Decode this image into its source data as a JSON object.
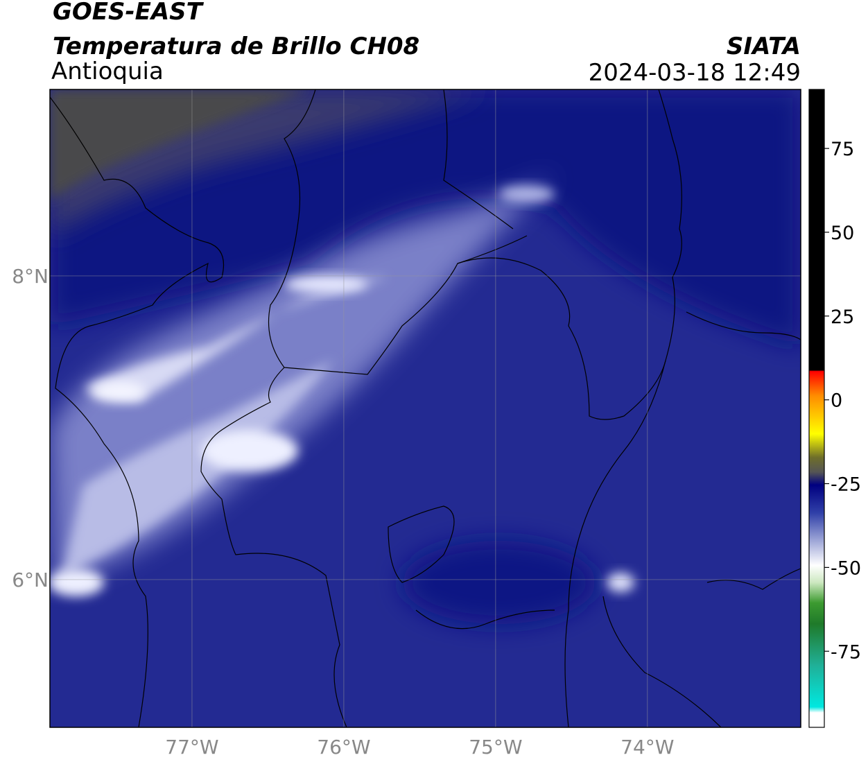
{
  "header": {
    "title": "GOES-EAST",
    "subtitle": "Temperatura de Brillo CH08",
    "region": "Antioquia",
    "source": "SIATA",
    "timestamp": "2024-03-18 12:49"
  },
  "map": {
    "lon_range": [
      -77.936,
      -72.99
    ],
    "lat_range": [
      5.027,
      9.228
    ],
    "lon_ticks": [
      {
        "value": -77,
        "label": "77°W"
      },
      {
        "value": -76,
        "label": "76°W"
      },
      {
        "value": -75,
        "label": "75°W"
      },
      {
        "value": -74,
        "label": "74°W"
      }
    ],
    "lat_ticks": [
      {
        "value": 8,
        "label": "8°N"
      },
      {
        "value": 6,
        "label": "6°N"
      }
    ]
  },
  "colorbar": {
    "range": [
      -97.7,
      92.6
    ],
    "ticks": [
      -75,
      -50,
      -25,
      0,
      25,
      50,
      75
    ]
  }
}
